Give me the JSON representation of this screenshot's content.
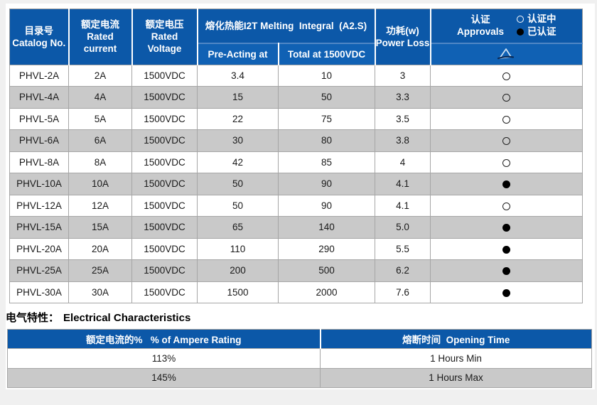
{
  "colors": {
    "header_blue": "#0c58a8",
    "subheader_blue": "#1061b4",
    "alt_row_gray": "#c9c9c9",
    "grid_line": "#a6a6a6"
  },
  "section1": {
    "table": {
      "headers": {
        "catalog_zh": "目录号",
        "catalog_en": "Catalog No.",
        "current_zh": "额定电流",
        "current_en_1": "Rated",
        "current_en_2": "current",
        "voltage_zh": "额定电压",
        "voltage_en_1": "Rated",
        "voltage_en_2": "Voltage",
        "melting_group": "熔化热能I2T Melting  Integral  (A2.S)",
        "pre_acting": "Pre-Acting at",
        "total": "Total at 1500VDC",
        "power_zh": "功耗(w)",
        "power_en": "Power Loss",
        "approvals_zh": "认证",
        "approvals_en": "Approvals",
        "legend_pending": "认证中",
        "legend_certified": "已认证"
      },
      "rows": [
        {
          "catalog": "PHVL-2A",
          "current": "2A",
          "voltage": "1500VDC",
          "pre_acting": "3.4",
          "total": "10",
          "power_loss": "3",
          "approval": "pending"
        },
        {
          "catalog": "PHVL-4A",
          "current": "4A",
          "voltage": "1500VDC",
          "pre_acting": "15",
          "total": "50",
          "power_loss": "3.3",
          "approval": "pending"
        },
        {
          "catalog": "PHVL-5A",
          "current": "5A",
          "voltage": "1500VDC",
          "pre_acting": "22",
          "total": "75",
          "power_loss": "3.5",
          "approval": "pending"
        },
        {
          "catalog": "PHVL-6A",
          "current": "6A",
          "voltage": "1500VDC",
          "pre_acting": "30",
          "total": "80",
          "power_loss": "3.8",
          "approval": "pending"
        },
        {
          "catalog": "PHVL-8A",
          "current": "8A",
          "voltage": "1500VDC",
          "pre_acting": "42",
          "total": "85",
          "power_loss": "4",
          "approval": "pending"
        },
        {
          "catalog": "PHVL-10A",
          "current": "10A",
          "voltage": "1500VDC",
          "pre_acting": "50",
          "total": "90",
          "power_loss": "4.1",
          "approval": "certified"
        },
        {
          "catalog": "PHVL-12A",
          "current": "12A",
          "voltage": "1500VDC",
          "pre_acting": "50",
          "total": "90",
          "power_loss": "4.1",
          "approval": "pending"
        },
        {
          "catalog": "PHVL-15A",
          "current": "15A",
          "voltage": "1500VDC",
          "pre_acting": "65",
          "total": "140",
          "power_loss": "5.0",
          "approval": "certified"
        },
        {
          "catalog": "PHVL-20A",
          "current": "20A",
          "voltage": "1500VDC",
          "pre_acting": "110",
          "total": "290",
          "power_loss": "5.5",
          "approval": "certified"
        },
        {
          "catalog": "PHVL-25A",
          "current": "25A",
          "voltage": "1500VDC",
          "pre_acting": "200",
          "total": "500",
          "power_loss": "6.2",
          "approval": "certified"
        },
        {
          "catalog": "PHVL-30A",
          "current": "30A",
          "voltage": "1500VDC",
          "pre_acting": "1500",
          "total": "2000",
          "power_loss": "7.6",
          "approval": "certified"
        }
      ]
    }
  },
  "section2": {
    "title_zh": "电气特性：",
    "title_en": "Electrical Characteristics",
    "table": {
      "headers": {
        "ampere_rating": "额定电流的%   % of Ampere Rating",
        "opening_time": "熔断时间  Opening Time"
      },
      "rows": [
        {
          "ampere_rating": "113%",
          "opening_time": "1 Hours Min"
        },
        {
          "ampere_rating": "145%",
          "opening_time": "1 Hours Max"
        }
      ]
    }
  }
}
